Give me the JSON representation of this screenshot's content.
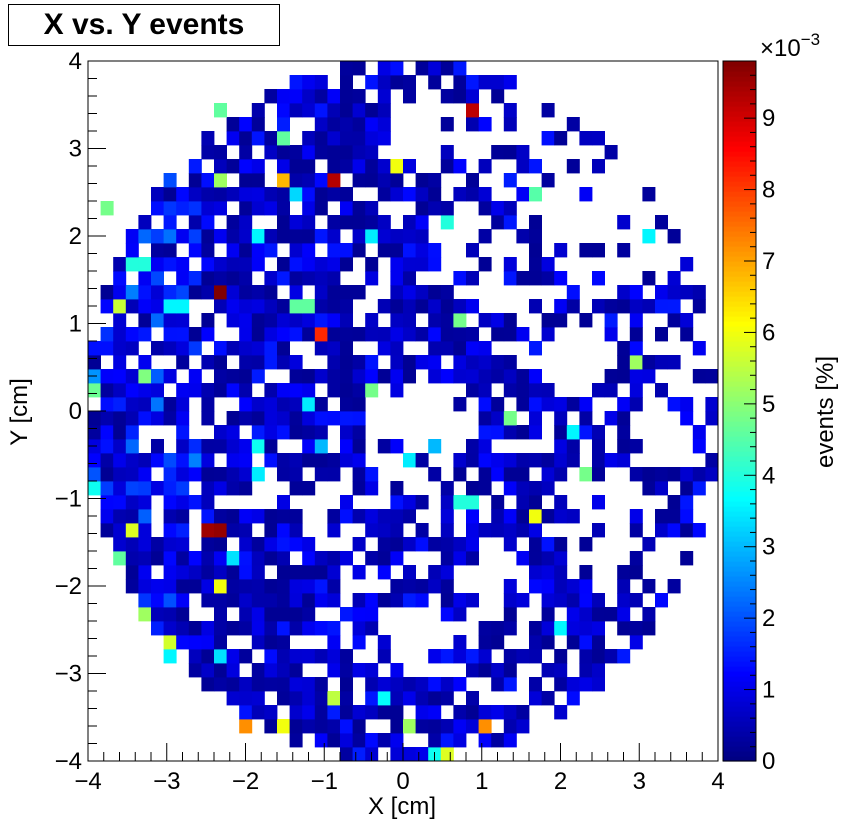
{
  "chart_data": {
    "type": "heatmap",
    "title": "X vs. Y events",
    "xlabel": "X [cm]",
    "ylabel": "Y [cm]",
    "zlabel": "events [%]",
    "z_multiplier_label": "×10",
    "z_multiplier_exponent": "−3",
    "xlim": [
      -4,
      4
    ],
    "ylim": [
      -4,
      4
    ],
    "zlim": [
      0,
      0.0098
    ],
    "x_ticks": [
      -4,
      -3,
      -2,
      -1,
      0,
      1,
      2,
      3,
      4
    ],
    "y_ticks": [
      -4,
      -3,
      -2,
      -1,
      0,
      1,
      2,
      3,
      4
    ],
    "x_tick_labels": [
      "−4",
      "−3",
      "−2",
      "−1",
      "0",
      "1",
      "2",
      "3",
      "4"
    ],
    "y_tick_labels": [
      "−4",
      "−3",
      "−2",
      "−1",
      "0",
      "1",
      "2",
      "3",
      "4"
    ],
    "z_ticks": [
      0,
      1,
      2,
      3,
      4,
      5,
      6,
      7,
      8,
      9
    ],
    "z_tick_labels": [
      "0",
      "1",
      "2",
      "3",
      "4",
      "5",
      "6",
      "7",
      "8",
      "9"
    ],
    "bins_x": 50,
    "bins_y": 50,
    "detector_radius": 4.0,
    "colormap": "jet",
    "typical_value_range": [
      0.0002,
      0.0015
    ],
    "hotspots": [
      {
        "x": 0.88,
        "y": 3.44,
        "z": 0.0092
      },
      {
        "x": -0.88,
        "y": 2.64,
        "z": 0.0093
      },
      {
        "x": -2.32,
        "y": 1.36,
        "z": 0.0098
      },
      {
        "x": -1.04,
        "y": 0.88,
        "z": 0.0082
      },
      {
        "x": -2.48,
        "y": -1.36,
        "z": 0.0095
      },
      {
        "x": -2.32,
        "y": -1.36,
        "z": 0.0096
      },
      {
        "x": -1.52,
        "y": 2.64,
        "z": 0.0068
      },
      {
        "x": -0.08,
        "y": 2.8,
        "z": 0.006
      },
      {
        "x": -2.0,
        "y": -3.6,
        "z": 0.0072
      },
      {
        "x": 1.04,
        "y": -3.6,
        "z": 0.0072
      },
      {
        "x": -2.32,
        "y": -2.0,
        "z": 0.006
      },
      {
        "x": -1.52,
        "y": -3.6,
        "z": 0.006
      },
      {
        "x": 0.56,
        "y": -3.92,
        "z": 0.0058
      },
      {
        "x": 1.68,
        "y": -1.2,
        "z": 0.006
      },
      {
        "x": -3.44,
        "y": -1.36,
        "z": 0.0058
      },
      {
        "x": -3.6,
        "y": 1.2,
        "z": 0.0056
      },
      {
        "x": -2.96,
        "y": -2.64,
        "z": 0.0057
      },
      {
        "x": -0.88,
        "y": -3.28,
        "z": 0.0055
      },
      {
        "x": 0.08,
        "y": -3.6,
        "z": 0.0052
      },
      {
        "x": -2.32,
        "y": 2.64,
        "z": 0.0052
      },
      {
        "x": 2.96,
        "y": 0.56,
        "z": 0.0052
      },
      {
        "x": 0.72,
        "y": 1.04,
        "z": 0.0048
      },
      {
        "x": -1.36,
        "y": 1.2,
        "z": 0.0046
      },
      {
        "x": -1.2,
        "y": 1.2,
        "z": 0.0046
      },
      {
        "x": -0.4,
        "y": 0.24,
        "z": 0.0048
      },
      {
        "x": 1.36,
        "y": -0.08,
        "z": 0.0048
      },
      {
        "x": 2.32,
        "y": -0.72,
        "z": 0.0048
      },
      {
        "x": -3.2,
        "y": 0.4,
        "z": 0.0049
      },
      {
        "x": -2.32,
        "y": 3.44,
        "z": 0.0046
      },
      {
        "x": -1.52,
        "y": 3.12,
        "z": 0.0046
      },
      {
        "x": 1.68,
        "y": 2.48,
        "z": 0.0045
      },
      {
        "x": -3.6,
        "y": -1.68,
        "z": 0.0046
      },
      {
        "x": -3.28,
        "y": -2.32,
        "z": 0.0052
      },
      {
        "x": -3.76,
        "y": 2.32,
        "z": 0.0048
      },
      {
        "x": -3.92,
        "y": 0.24,
        "z": 0.0047
      },
      {
        "x": 0.56,
        "y": 2.16,
        "z": 0.004
      },
      {
        "x": -1.2,
        "y": 0.0,
        "z": 0.0035
      },
      {
        "x": 0.72,
        "y": -1.04,
        "z": 0.004
      },
      {
        "x": 0.88,
        "y": -1.04,
        "z": 0.004
      },
      {
        "x": -3.92,
        "y": -0.88,
        "z": 0.0038
      },
      {
        "x": -3.44,
        "y": 1.68,
        "z": 0.004
      },
      {
        "x": -3.28,
        "y": 1.68,
        "z": 0.004
      },
      {
        "x": -2.96,
        "y": 1.12,
        "z": 0.0036
      },
      {
        "x": -2.8,
        "y": 1.12,
        "z": 0.0036
      },
      {
        "x": -1.84,
        "y": 2.0,
        "z": 0.0036
      },
      {
        "x": -1.84,
        "y": -0.72,
        "z": 0.0035
      },
      {
        "x": -1.84,
        "y": -0.4,
        "z": 0.0038
      },
      {
        "x": 0.4,
        "y": -3.92,
        "z": 0.0038
      },
      {
        "x": -0.24,
        "y": -3.28,
        "z": 0.0037
      },
      {
        "x": 2.16,
        "y": -0.24,
        "z": 0.0036
      },
      {
        "x": 2.0,
        "y": -2.48,
        "z": 0.0036
      },
      {
        "x": -2.32,
        "y": -2.8,
        "z": 0.0034
      },
      {
        "x": -2.96,
        "y": -2.8,
        "z": 0.0036
      },
      {
        "x": 3.12,
        "y": 2.0,
        "z": 0.0036
      },
      {
        "x": -1.04,
        "y": -0.48,
        "z": 0.003
      },
      {
        "x": 0.4,
        "y": -0.48,
        "z": 0.003
      },
      {
        "x": -1.36,
        "y": 2.48,
        "z": 0.0033
      },
      {
        "x": -0.4,
        "y": 2.0,
        "z": 0.0035
      },
      {
        "x": 0.08,
        "y": -0.56,
        "z": 0.0035
      },
      {
        "x": -2.16,
        "y": -1.68,
        "z": 0.0034
      }
    ],
    "empty_pockets": [
      {
        "x": 2.6,
        "y": 2.2,
        "r": 0.85
      },
      {
        "x": 0.3,
        "y": 3.2,
        "r": 0.45
      },
      {
        "x": 0.1,
        "y": -0.25,
        "r": 0.65
      },
      {
        "x": 2.6,
        "y": -1.2,
        "r": 0.6
      },
      {
        "x": 2.2,
        "y": 0.6,
        "r": 0.45
      },
      {
        "x": 1.1,
        "y": -1.9,
        "r": 0.45
      },
      {
        "x": -0.9,
        "y": -1.2,
        "r": 0.4
      },
      {
        "x": 1.0,
        "y": 1.7,
        "r": 0.55
      },
      {
        "x": -0.4,
        "y": 1.5,
        "r": 0.35
      },
      {
        "x": 0.2,
        "y": -2.6,
        "r": 0.4
      },
      {
        "x": 3.2,
        "y": -0.3,
        "r": 0.4
      },
      {
        "x": 1.5,
        "y": 3.3,
        "r": 0.35
      }
    ]
  }
}
